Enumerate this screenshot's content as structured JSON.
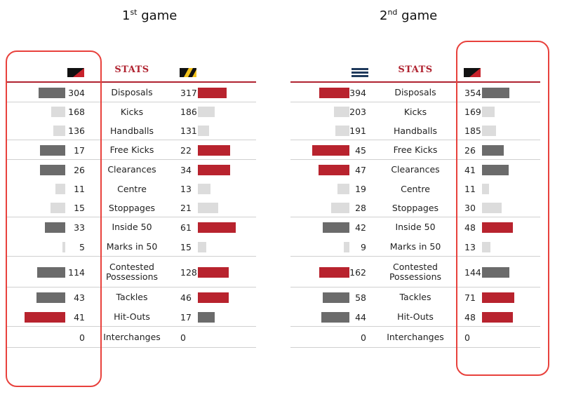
{
  "chart_data": [
    {
      "type": "bar",
      "game_title": {
        "ordinal": "1",
        "suffix": "st",
        "text": "game"
      },
      "header": "STATS",
      "left_logo": "red-black-diagonal-logo",
      "right_logo": "yellow-black-stripe-logo",
      "colors": {
        "red": "#b8232e",
        "grey": "#6b6b6b",
        "light": "#dcdcdc"
      },
      "rows": [
        {
          "label": "Disposals",
          "left": "304",
          "right": "317",
          "left_value": 304,
          "right_value": 317,
          "left_color": "grey",
          "right_color": "red",
          "left_len": 38,
          "right_len": 41,
          "h": 28,
          "line": true
        },
        {
          "label": "Kicks",
          "left": "168",
          "right": "186",
          "left_value": 168,
          "right_value": 186,
          "left_color": "light",
          "right_color": "light",
          "left_len": 20,
          "right_len": 24,
          "h": 27,
          "line": false
        },
        {
          "label": "Handballs",
          "left": "136",
          "right": "131",
          "left_value": 136,
          "right_value": 131,
          "left_color": "light",
          "right_color": "light",
          "left_len": 17,
          "right_len": 16,
          "h": 27,
          "line": true
        },
        {
          "label": "Free Kicks",
          "left": "17",
          "right": "22",
          "left_value": 17,
          "right_value": 22,
          "left_color": "grey",
          "right_color": "red",
          "left_len": 36,
          "right_len": 46,
          "h": 28,
          "line": true
        },
        {
          "label": "Clearances",
          "left": "26",
          "right": "34",
          "left_value": 26,
          "right_value": 34,
          "left_color": "grey",
          "right_color": "red",
          "left_len": 36,
          "right_len": 46,
          "h": 28,
          "line": false
        },
        {
          "label": "Centre",
          "left": "11",
          "right": "13",
          "left_value": 11,
          "right_value": 13,
          "left_color": "light",
          "right_color": "light",
          "left_len": 14,
          "right_len": 18,
          "h": 27,
          "line": false
        },
        {
          "label": "Stoppages",
          "left": "15",
          "right": "21",
          "left_value": 15,
          "right_value": 21,
          "left_color": "light",
          "right_color": "light",
          "left_len": 21,
          "right_len": 29,
          "h": 27,
          "line": true
        },
        {
          "label": "Inside 50",
          "left": "33",
          "right": "61",
          "left_value": 33,
          "right_value": 61,
          "left_color": "grey",
          "right_color": "red",
          "left_len": 29,
          "right_len": 54,
          "h": 28,
          "line": false
        },
        {
          "label": "Marks in 50",
          "left": "5",
          "right": "15",
          "left_value": 5,
          "right_value": 15,
          "left_color": "light",
          "right_color": "light",
          "left_len": 4,
          "right_len": 12,
          "h": 28,
          "line": true
        },
        {
          "label": "Contested Possessions",
          "left": "114",
          "right": "128",
          "left_value": 114,
          "right_value": 128,
          "left_color": "grey",
          "right_color": "red",
          "left_len": 40,
          "right_len": 44,
          "h": 44,
          "line": true
        },
        {
          "label": "Tackles",
          "left": "43",
          "right": "46",
          "left_value": 43,
          "right_value": 46,
          "left_color": "grey",
          "right_color": "red",
          "left_len": 41,
          "right_len": 44,
          "h": 28,
          "line": false
        },
        {
          "label": "Hit-Outs",
          "left": "41",
          "right": "17",
          "left_value": 41,
          "right_value": 17,
          "left_color": "red",
          "right_color": "grey",
          "left_len": 58,
          "right_len": 24,
          "h": 28,
          "line": true
        },
        {
          "label": "Interchanges",
          "left": "0",
          "right": "0",
          "left_value": 0,
          "right_value": 0,
          "left_color": "light",
          "right_color": "light",
          "left_len": 0,
          "right_len": 0,
          "h": 30,
          "line": true
        }
      ]
    },
    {
      "type": "bar",
      "game_title": {
        "ordinal": "2",
        "suffix": "nd",
        "text": "game"
      },
      "header": "STATS",
      "left_logo": "navy-stripes-logo",
      "right_logo": "red-black-diagonal-logo",
      "colors": {
        "red": "#b8232e",
        "grey": "#6b6b6b",
        "light": "#dcdcdc"
      },
      "rows": [
        {
          "label": "Disposals",
          "left": "394",
          "right": "354",
          "left_value": 394,
          "right_value": 354,
          "left_color": "red",
          "right_color": "grey",
          "left_len": 43,
          "right_len": 39,
          "h": 28,
          "line": true
        },
        {
          "label": "Kicks",
          "left": "203",
          "right": "169",
          "left_value": 203,
          "right_value": 169,
          "left_color": "light",
          "right_color": "light",
          "left_len": 22,
          "right_len": 18,
          "h": 27,
          "line": false
        },
        {
          "label": "Handballs",
          "left": "191",
          "right": "185",
          "left_value": 191,
          "right_value": 185,
          "left_color": "light",
          "right_color": "light",
          "left_len": 20,
          "right_len": 20,
          "h": 27,
          "line": true
        },
        {
          "label": "Free Kicks",
          "left": "45",
          "right": "26",
          "left_value": 45,
          "right_value": 26,
          "left_color": "red",
          "right_color": "grey",
          "left_len": 53,
          "right_len": 31,
          "h": 28,
          "line": true
        },
        {
          "label": "Clearances",
          "left": "47",
          "right": "41",
          "left_value": 47,
          "right_value": 41,
          "left_color": "red",
          "right_color": "grey",
          "left_len": 44,
          "right_len": 38,
          "h": 28,
          "line": false
        },
        {
          "label": "Centre",
          "left": "19",
          "right": "11",
          "left_value": 19,
          "right_value": 11,
          "left_color": "light",
          "right_color": "light",
          "left_len": 17,
          "right_len": 10,
          "h": 27,
          "line": false
        },
        {
          "label": "Stoppages",
          "left": "28",
          "right": "30",
          "left_value": 28,
          "right_value": 30,
          "left_color": "light",
          "right_color": "light",
          "left_len": 26,
          "right_len": 28,
          "h": 27,
          "line": true
        },
        {
          "label": "Inside 50",
          "left": "42",
          "right": "48",
          "left_value": 42,
          "right_value": 48,
          "left_color": "grey",
          "right_color": "red",
          "left_len": 38,
          "right_len": 44,
          "h": 28,
          "line": false
        },
        {
          "label": "Marks in 50",
          "left": "9",
          "right": "13",
          "left_value": 9,
          "right_value": 13,
          "left_color": "light",
          "right_color": "light",
          "left_len": 8,
          "right_len": 12,
          "h": 28,
          "line": true
        },
        {
          "label": "Contested Possessions",
          "left": "162",
          "right": "144",
          "left_value": 162,
          "right_value": 144,
          "left_color": "red",
          "right_color": "grey",
          "left_len": 43,
          "right_len": 39,
          "h": 44,
          "line": true
        },
        {
          "label": "Tackles",
          "left": "58",
          "right": "71",
          "left_value": 58,
          "right_value": 71,
          "left_color": "grey",
          "right_color": "red",
          "left_len": 38,
          "right_len": 46,
          "h": 28,
          "line": false
        },
        {
          "label": "Hit-Outs",
          "left": "44",
          "right": "48",
          "left_value": 44,
          "right_value": 48,
          "left_color": "grey",
          "right_color": "red",
          "left_len": 40,
          "right_len": 44,
          "h": 28,
          "line": true
        },
        {
          "label": "Interchanges",
          "left": "0",
          "right": "0",
          "left_value": 0,
          "right_value": 0,
          "left_color": "light",
          "right_color": "light",
          "left_len": 0,
          "right_len": 0,
          "h": 30,
          "line": true
        }
      ]
    }
  ]
}
